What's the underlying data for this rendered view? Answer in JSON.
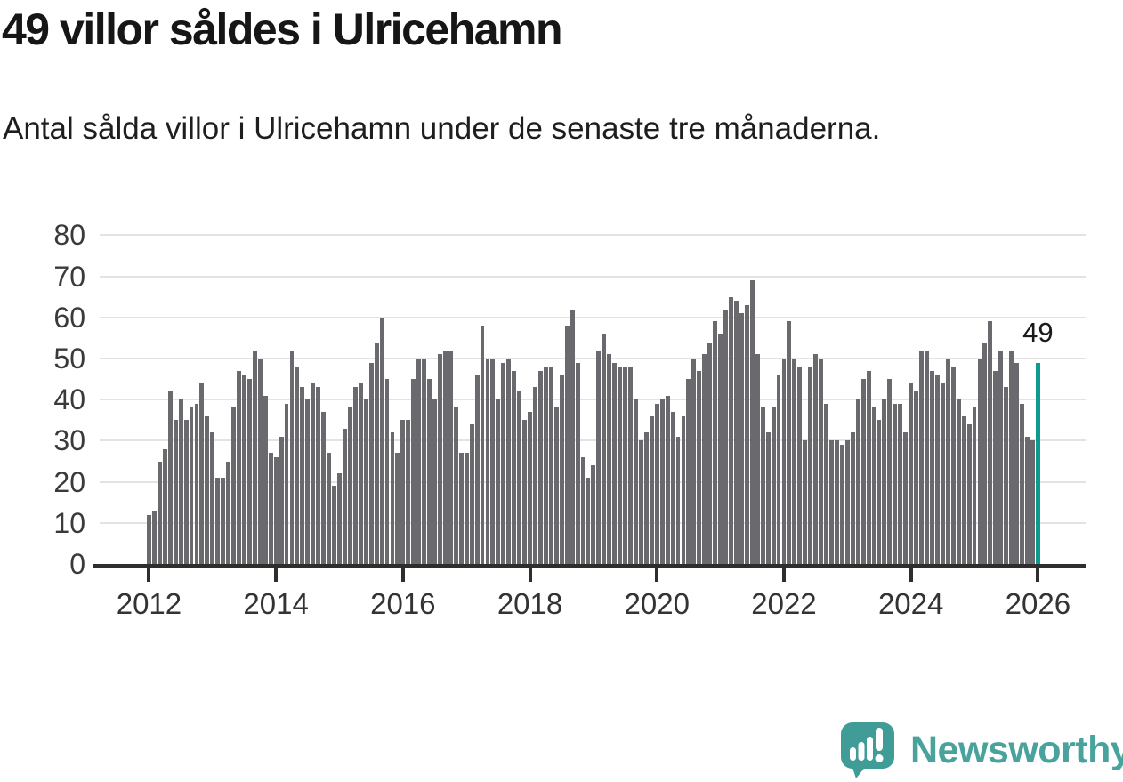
{
  "header": {
    "title": "49 villor såldes i Ulricehamn",
    "subtitle": "Antal sålda villor i Ulricehamn under de senaste tre månaderna."
  },
  "chart_data": {
    "type": "bar",
    "title": "49 villor såldes i Ulricehamn",
    "subtitle": "Antal sålda villor i Ulricehamn under de senaste tre månaderna.",
    "x_start": "2012-01",
    "frequency": "monthly",
    "xlabel": "",
    "ylabel": "",
    "ylim": [
      0,
      80
    ],
    "yticks": [
      0,
      10,
      20,
      30,
      40,
      50,
      60,
      70,
      80
    ],
    "xticks": [
      2012,
      2014,
      2016,
      2018,
      2020,
      2022,
      2024,
      2026
    ],
    "grid": "horizontal",
    "legend": "none",
    "bar_color": "#6a6a6e",
    "highlight_color": "#0f9a90",
    "highlight_last": true,
    "annotation_label": "49",
    "last_value": 49,
    "values": [
      12,
      13,
      25,
      28,
      42,
      35,
      40,
      35,
      38,
      39,
      44,
      36,
      32,
      21,
      21,
      25,
      38,
      47,
      46,
      45,
      52,
      50,
      41,
      27,
      26,
      31,
      39,
      52,
      48,
      43,
      40,
      44,
      43,
      37,
      27,
      19,
      22,
      33,
      38,
      43,
      44,
      40,
      49,
      54,
      60,
      45,
      32,
      27,
      35,
      35,
      45,
      50,
      50,
      45,
      40,
      51,
      52,
      52,
      38,
      27,
      27,
      34,
      46,
      58,
      50,
      50,
      40,
      49,
      50,
      47,
      42,
      35,
      37,
      43,
      47,
      48,
      48,
      38,
      46,
      58,
      62,
      49,
      26,
      21,
      24,
      52,
      56,
      51,
      49,
      48,
      48,
      48,
      40,
      30,
      32,
      36,
      39,
      40,
      41,
      37,
      31,
      36,
      45,
      50,
      47,
      51,
      54,
      59,
      56,
      62,
      65,
      64,
      61,
      63,
      69,
      51,
      38,
      32,
      38,
      46,
      50,
      59,
      50,
      48,
      30,
      48,
      51,
      50,
      39,
      30,
      30,
      29,
      30,
      32,
      40,
      45,
      47,
      38,
      35,
      40,
      45,
      39,
      39,
      32,
      44,
      42,
      52,
      52,
      47,
      46,
      44,
      50,
      48,
      40,
      36,
      34,
      38,
      50,
      54,
      59,
      47,
      52,
      43,
      52,
      49,
      39,
      31,
      30,
      49
    ]
  },
  "annotation": {
    "label": "49"
  },
  "footer": {
    "brand": "Newsworthy",
    "logo_icon": "newsworthy-speech-bubble-bar-chart-icon",
    "brand_color": "#4aa29c",
    "icon_color": "#3f9c96"
  },
  "colors": {
    "background": "#ffffff",
    "bar": "#6a6a6e",
    "highlight": "#0f9a90",
    "axis": "#2e2e2e",
    "gridline": "#e3e3e3",
    "title_text": "#161616",
    "tick_text": "#333333"
  }
}
